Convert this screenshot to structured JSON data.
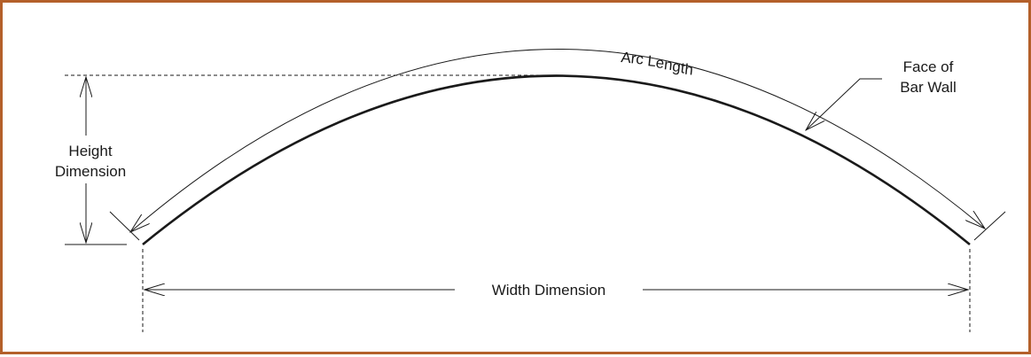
{
  "labels": {
    "arc_length": "Arc Length",
    "arc_length_parts": [
      "Arc ",
      "L",
      "e",
      "n",
      "g",
      "t",
      "h"
    ],
    "face_line1": "Face of",
    "face_line2": "Bar Wall",
    "height_line1": "Height",
    "height_line2": "Dimension",
    "width": "Width Dimension"
  },
  "colors": {
    "frame_border": "#b4602a",
    "stroke": "#1a1a1a"
  }
}
